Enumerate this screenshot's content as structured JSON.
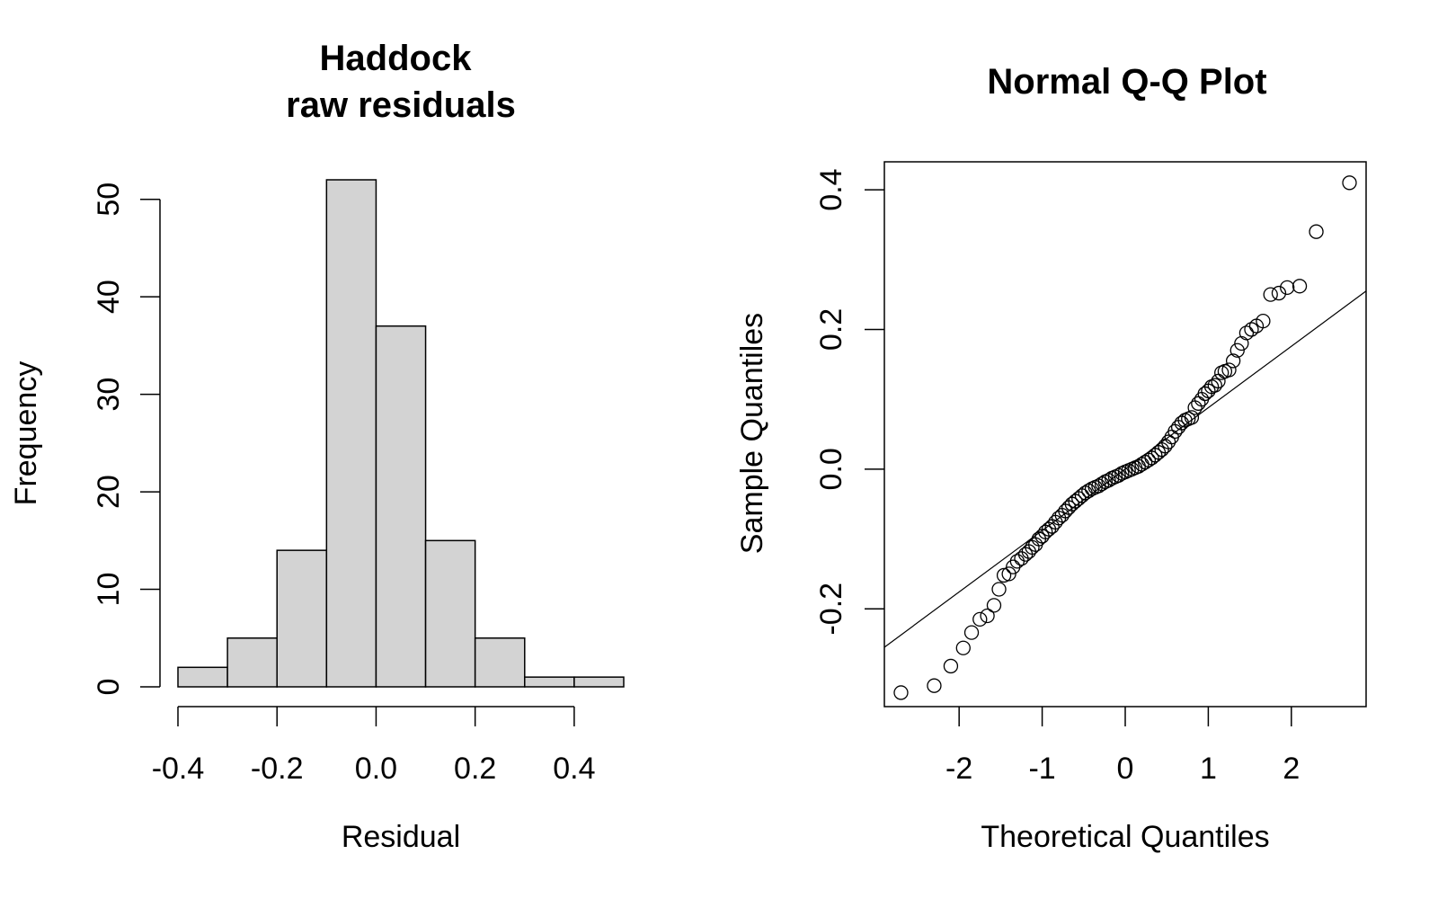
{
  "chart_data": [
    {
      "type": "bar",
      "title": "Haddock",
      "subtitle": "raw residuals",
      "xlabel": "Residual",
      "ylabel": "Frequency",
      "bin_edges": [
        -0.4,
        -0.3,
        -0.2,
        -0.1,
        0.0,
        0.1,
        0.2,
        0.3,
        0.4,
        0.5
      ],
      "values": [
        2,
        5,
        14,
        52,
        37,
        15,
        5,
        1,
        1
      ],
      "xlim": [
        -0.4,
        0.5
      ],
      "ylim": [
        0,
        52
      ],
      "xticks": [
        "-0.4",
        "-0.2",
        "0.0",
        "0.2",
        "0.4"
      ],
      "xtick_values": [
        -0.4,
        -0.2,
        0.0,
        0.2,
        0.4
      ],
      "yticks": [
        "0",
        "10",
        "20",
        "30",
        "40",
        "50"
      ],
      "ytick_values": [
        0,
        10,
        20,
        30,
        40,
        50
      ],
      "bar_color": "#d3d3d3",
      "grid": false
    },
    {
      "type": "scatter",
      "title": "Normal Q-Q Plot",
      "xlabel": "Theoretical Quantiles",
      "ylabel": "Sample Quantiles",
      "xlim": [
        -2.9,
        2.9
      ],
      "ylim": [
        -0.34,
        0.44
      ],
      "xticks": [
        "-2",
        "-1",
        "0",
        "1",
        "2"
      ],
      "xtick_values": [
        -2,
        -1,
        0,
        1,
        2
      ],
      "yticks": [
        "-0.2",
        "0.0",
        "0.2",
        "0.4"
      ],
      "ytick_values": [
        -0.2,
        0.0,
        0.2,
        0.4
      ],
      "reference_line": {
        "x": [
          -2.9,
          2.9
        ],
        "y": [
          -0.255,
          0.255
        ]
      },
      "x": [
        -2.7,
        -2.3,
        -2.1,
        -1.95,
        -1.85,
        -1.75,
        -1.66,
        -1.58,
        -1.52,
        -1.46,
        -1.4,
        -1.35,
        -1.3,
        -1.25,
        -1.2,
        -1.16,
        -1.12,
        -1.08,
        -1.04,
        -1.0,
        -0.96,
        -0.92,
        -0.88,
        -0.84,
        -0.8,
        -0.76,
        -0.72,
        -0.68,
        -0.64,
        -0.6,
        -0.56,
        -0.52,
        -0.48,
        -0.44,
        -0.4,
        -0.36,
        -0.32,
        -0.28,
        -0.24,
        -0.2,
        -0.16,
        -0.12,
        -0.08,
        -0.04,
        0.0,
        0.04,
        0.08,
        0.12,
        0.16,
        0.2,
        0.24,
        0.28,
        0.32,
        0.36,
        0.4,
        0.44,
        0.48,
        0.52,
        0.56,
        0.6,
        0.64,
        0.68,
        0.72,
        0.76,
        0.8,
        0.84,
        0.88,
        0.92,
        0.96,
        1.0,
        1.04,
        1.08,
        1.12,
        1.16,
        1.2,
        1.25,
        1.3,
        1.35,
        1.4,
        1.46,
        1.52,
        1.58,
        1.66,
        1.75,
        1.85,
        1.95,
        2.1,
        2.3,
        2.7
      ],
      "y": [
        -0.32,
        -0.31,
        -0.282,
        -0.256,
        -0.234,
        -0.215,
        -0.21,
        -0.195,
        -0.172,
        -0.152,
        -0.15,
        -0.14,
        -0.132,
        -0.128,
        -0.122,
        -0.118,
        -0.112,
        -0.108,
        -0.1,
        -0.096,
        -0.09,
        -0.086,
        -0.082,
        -0.076,
        -0.07,
        -0.066,
        -0.06,
        -0.055,
        -0.05,
        -0.046,
        -0.042,
        -0.038,
        -0.034,
        -0.031,
        -0.028,
        -0.026,
        -0.024,
        -0.021,
        -0.018,
        -0.016,
        -0.013,
        -0.011,
        -0.009,
        -0.006,
        -0.004,
        -0.002,
        0.0,
        0.002,
        0.004,
        0.007,
        0.01,
        0.013,
        0.016,
        0.02,
        0.024,
        0.028,
        0.033,
        0.039,
        0.046,
        0.054,
        0.06,
        0.066,
        0.07,
        0.072,
        0.074,
        0.088,
        0.094,
        0.1,
        0.108,
        0.112,
        0.118,
        0.12,
        0.126,
        0.138,
        0.14,
        0.142,
        0.155,
        0.17,
        0.18,
        0.195,
        0.2,
        0.205,
        0.212,
        0.25,
        0.252,
        0.26,
        0.262,
        0.34,
        0.41
      ]
    }
  ]
}
